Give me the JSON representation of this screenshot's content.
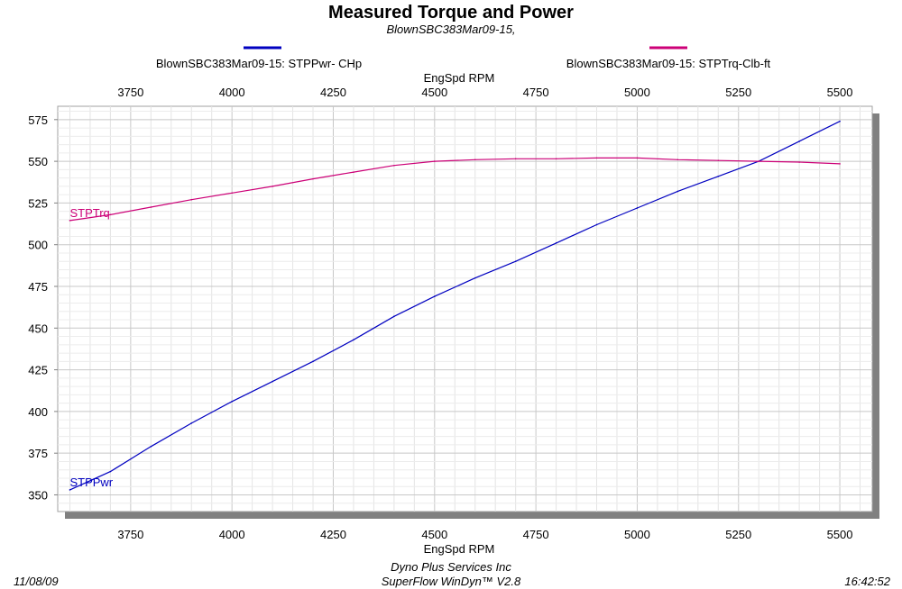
{
  "chart_data": {
    "type": "line",
    "title": "Measured Torque and Power",
    "subtitle": "BlownSBC383Mar09-15,",
    "xlabel": "EngSpd  RPM",
    "xlim": [
      3570,
      5580
    ],
    "ylim": [
      340,
      583
    ],
    "x_ticks": [
      3750,
      4000,
      4250,
      4500,
      4750,
      5000,
      5250,
      5500
    ],
    "y_ticks": [
      350,
      375,
      400,
      425,
      450,
      475,
      500,
      525,
      550,
      575
    ],
    "grid": true,
    "legend_position": "top",
    "series": [
      {
        "name": "BlownSBC383Mar09-15: STPPwr- CHp",
        "label": "STPPwr",
        "color": "#0000c0",
        "x": [
          3600,
          3700,
          3800,
          3900,
          4000,
          4100,
          4200,
          4300,
          4400,
          4500,
          4600,
          4700,
          4800,
          4900,
          5000,
          5100,
          5200,
          5300,
          5400,
          5500
        ],
        "y": [
          353,
          364,
          379,
          393,
          406,
          418,
          430,
          443,
          457,
          469,
          480,
          490,
          501,
          512,
          522,
          532,
          541,
          550,
          562,
          574
        ]
      },
      {
        "name": "BlownSBC383Mar09-15: STPTrq-Clb-ft",
        "label": "STPTrq",
        "color": "#cc0077",
        "x": [
          3600,
          3700,
          3800,
          3900,
          4000,
          4100,
          4200,
          4300,
          4400,
          4500,
          4600,
          4700,
          4800,
          4900,
          5000,
          5100,
          5200,
          5300,
          5400,
          5500
        ],
        "y": [
          514.5,
          518,
          522.5,
          527,
          531,
          535,
          539.5,
          543.5,
          547.5,
          550,
          551,
          551.5,
          551.5,
          552,
          552,
          551,
          550.5,
          550,
          549.5,
          548.5
        ]
      }
    ]
  },
  "footer": {
    "date": "11/08/09",
    "company": "Dyno Plus Services Inc",
    "software": "SuperFlow WinDyn™ V2.8",
    "time": "16:42:52"
  }
}
